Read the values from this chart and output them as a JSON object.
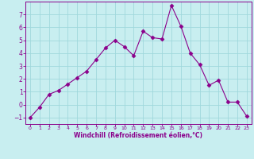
{
  "x": [
    0,
    1,
    2,
    3,
    4,
    5,
    6,
    7,
    8,
    9,
    10,
    11,
    12,
    13,
    14,
    15,
    16,
    17,
    18,
    19,
    20,
    21,
    22,
    23
  ],
  "y": [
    -1,
    -0.2,
    0.8,
    1.1,
    1.6,
    2.1,
    2.6,
    3.5,
    4.4,
    5.0,
    4.5,
    3.8,
    5.7,
    5.2,
    5.1,
    7.7,
    6.1,
    4.0,
    3.1,
    1.5,
    1.9,
    0.2,
    0.2,
    -0.9
  ],
  "line_color": "#8b008b",
  "marker": "D",
  "marker_size": 2.5,
  "bg_color": "#c8eef0",
  "grid_color": "#a0d8dc",
  "xlabel": "Windchill (Refroidissement éolien,°C)",
  "xlabel_color": "#8b008b",
  "tick_color": "#8b008b",
  "spine_color": "#8b008b",
  "xlim": [
    -0.5,
    23.5
  ],
  "ylim": [
    -1.5,
    8.0
  ],
  "yticks": [
    -1,
    0,
    1,
    2,
    3,
    4,
    5,
    6,
    7
  ],
  "xticks": [
    0,
    1,
    2,
    3,
    4,
    5,
    6,
    7,
    8,
    9,
    10,
    11,
    12,
    13,
    14,
    15,
    16,
    17,
    18,
    19,
    20,
    21,
    22,
    23
  ]
}
